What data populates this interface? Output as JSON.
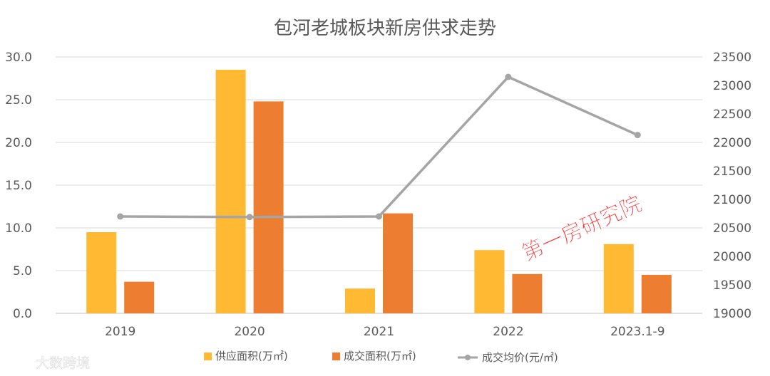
{
  "chart_data": {
    "type": "bar",
    "title": "包河老城板块新房供求走势",
    "categories": [
      "2019",
      "2020",
      "2021",
      "2022",
      "2023.1-9"
    ],
    "left_axis": {
      "ylim": [
        0,
        30
      ],
      "ticks": [
        "0.0",
        "5.0",
        "10.0",
        "15.0",
        "20.0",
        "25.0",
        "30.0"
      ]
    },
    "right_axis": {
      "ylim": [
        19000,
        23500
      ],
      "ticks": [
        "19000",
        "19500",
        "20000",
        "20500",
        "21000",
        "21500",
        "22000",
        "22500",
        "23000",
        "23500"
      ]
    },
    "series": [
      {
        "name": "供应面积(万㎡)",
        "type": "bar",
        "axis": "left",
        "color": "#FFB932",
        "values": [
          9.5,
          28.5,
          2.9,
          7.4,
          8.1
        ]
      },
      {
        "name": "成交面积(万㎡)",
        "type": "bar",
        "axis": "left",
        "color": "#ED7D31",
        "values": [
          3.7,
          24.8,
          11.7,
          4.6,
          4.5
        ]
      },
      {
        "name": "成交均价(元/㎡)",
        "type": "line",
        "axis": "right",
        "color": "#A5A5A5",
        "values": [
          20700,
          20690,
          20700,
          23150,
          22130
        ]
      }
    ],
    "grid": true,
    "legend_position": "bottom"
  },
  "watermarks": {
    "stamp": "第一房研究院",
    "brand": "大数跨境"
  }
}
